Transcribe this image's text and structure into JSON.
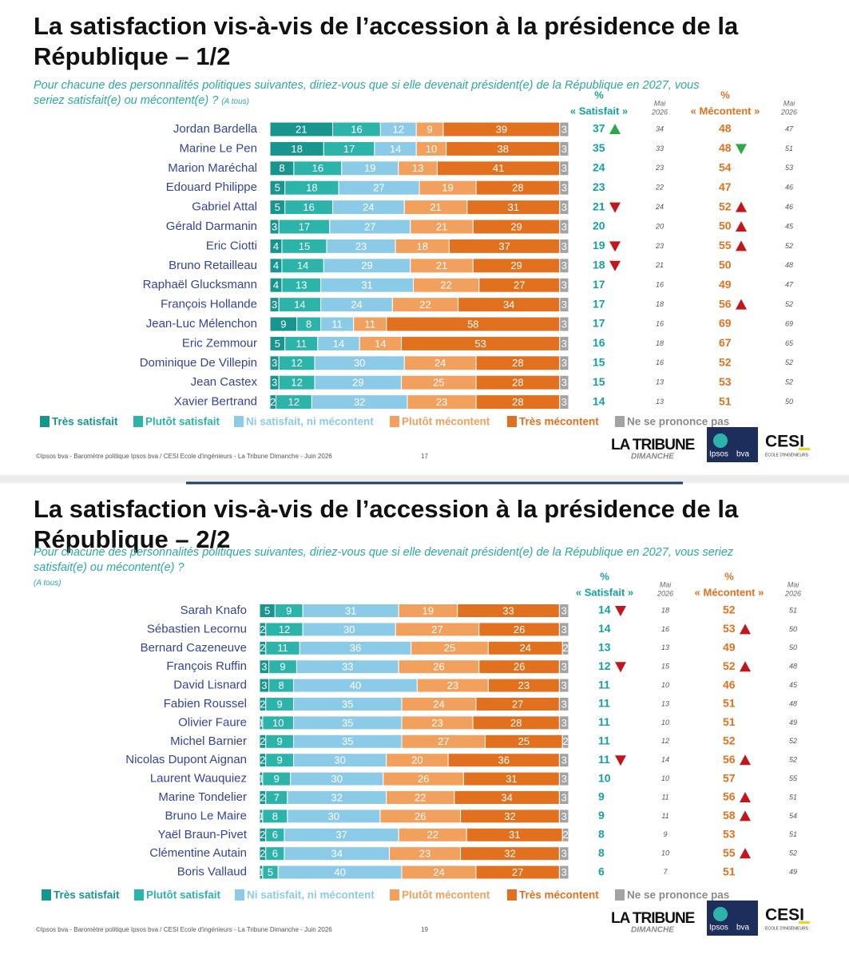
{
  "chart_data": [
    {
      "type": "stacked_bar_h",
      "title": "La satisfaction vis-à-vis de l’accession à la présidence de la République – 1/2",
      "subtitle": "Pour chacune des personnalités politiques suivantes, diriez-vous que si elle devenait président(e) de la République en 2027, vous seriez satisfait(e) ou mécontent(e) ?",
      "note": "(A tous)",
      "xlim": [
        0,
        100
      ],
      "categories": [
        "Jordan Bardella",
        "Marine Le Pen",
        "Marion Maréchal",
        "Edouard Philippe",
        "Gabriel Attal",
        "Gérald Darmanin",
        "Eric Ciotti",
        "Bruno Retailleau",
        "Raphaël Glucksmann",
        "François Hollande",
        "Jean-Luc Mélenchon",
        "Eric Zemmour",
        "Dominique De Villepin",
        "Jean Castex",
        "Xavier Bertrand"
      ],
      "series": [
        {
          "name": "Très satisfait",
          "color": "#17958e",
          "values": [
            21,
            18,
            8,
            5,
            5,
            3,
            4,
            4,
            4,
            3,
            9,
            5,
            3,
            3,
            2
          ]
        },
        {
          "name": "Plutôt satisfait",
          "color": "#2cb4ab",
          "values": [
            16,
            17,
            16,
            18,
            16,
            17,
            15,
            14,
            13,
            14,
            8,
            11,
            12,
            12,
            12
          ]
        },
        {
          "name": "Ni satisfait, ni mécontent",
          "color": "#8ccbe8",
          "values": [
            12,
            14,
            19,
            27,
            24,
            27,
            23,
            29,
            31,
            24,
            11,
            14,
            30,
            29,
            32
          ]
        },
        {
          "name": "Plutôt mécontent",
          "color": "#f2a05e",
          "values": [
            9,
            10,
            13,
            19,
            21,
            21,
            18,
            21,
            22,
            22,
            11,
            14,
            24,
            25,
            23
          ]
        },
        {
          "name": "Très mécontent",
          "color": "#e2711f",
          "values": [
            39,
            38,
            41,
            28,
            31,
            29,
            37,
            29,
            27,
            34,
            58,
            53,
            28,
            28,
            28
          ]
        },
        {
          "name": "Ne se prononce pas",
          "color": "#a3a3a3",
          "values": [
            3,
            3,
            3,
            3,
            3,
            3,
            3,
            3,
            3,
            3,
            3,
            3,
            3,
            3,
            3
          ]
        }
      ],
      "columns": [
        {
          "symbol": "%",
          "label": "« Satisfait »",
          "color": "#16a0a0",
          "up_color": "#2aa84a",
          "down_color": "#c0161c",
          "values": [
            37,
            35,
            24,
            23,
            21,
            20,
            19,
            18,
            17,
            17,
            17,
            16,
            15,
            15,
            14
          ],
          "trend": [
            "up",
            null,
            null,
            null,
            "down",
            null,
            "down",
            "down",
            null,
            null,
            null,
            null,
            null,
            null,
            null
          ]
        },
        {
          "label_lines": [
            "Mai",
            "2026"
          ],
          "values": [
            34,
            33,
            23,
            22,
            24,
            20,
            23,
            21,
            16,
            18,
            16,
            18,
            16,
            13,
            13
          ]
        },
        {
          "symbol": "%",
          "label": "« Mécontent »",
          "color": "#e2711f",
          "up_color": "#c0161c",
          "down_color": "#2aa84a",
          "values": [
            48,
            48,
            54,
            47,
            52,
            50,
            55,
            50,
            49,
            56,
            69,
            67,
            52,
            53,
            51
          ],
          "trend": [
            null,
            "down",
            null,
            null,
            "up",
            "up",
            "up",
            null,
            null,
            "up",
            null,
            null,
            null,
            null,
            null
          ]
        },
        {
          "label_lines": [
            "Mai",
            "2026"
          ],
          "values": [
            47,
            51,
            53,
            46,
            46,
            45,
            52,
            48,
            47,
            52,
            69,
            65,
            52,
            52,
            50
          ]
        }
      ],
      "source": "©Ipsos bva - Baromètre politique Ipsos bva / CESI Ecole d'ingénieurs - La Tribune Dimanche - Juin 2026",
      "page": "17",
      "logos": {
        "tribune": "LA TRIBUNE",
        "tribune_sub": "DIMANCHE",
        "ipsos": "Ipsos",
        "bva": "bva",
        "cesi": "CESI",
        "cesi_sub": "ÉCOLE D'INGÉNIEURS"
      }
    },
    {
      "type": "stacked_bar_h",
      "title": "La satisfaction vis-à-vis de l’accession à la présidence de la République – 2/2",
      "subtitle": "Pour chacune des personnalités politiques suivantes, diriez-vous que si elle devenait président(e) de la République en 2027, vous seriez satisfait(e) ou mécontent(e) ?",
      "note": "(A tous)",
      "xlim": [
        0,
        100
      ],
      "categories": [
        "Sarah Knafo",
        "Sébastien Lecornu",
        "Bernard Cazeneuve",
        "François Ruffin",
        "David Lisnard",
        "Fabien Roussel",
        "Olivier Faure",
        "Michel Barnier",
        "Nicolas Dupont Aignan",
        "Laurent Wauquiez",
        "Marine Tondelier",
        "Bruno Le Maire",
        "Yaël Braun-Pivet",
        "Clémentine Autain",
        "Boris Vallaud"
      ],
      "series": [
        {
          "name": "Très satisfait",
          "color": "#17958e",
          "values": [
            5,
            2,
            2,
            3,
            3,
            2,
            1,
            2,
            2,
            1,
            2,
            1,
            2,
            2,
            1
          ]
        },
        {
          "name": "Plutôt satisfait",
          "color": "#2cb4ab",
          "values": [
            9,
            12,
            11,
            9,
            8,
            9,
            10,
            9,
            9,
            9,
            7,
            8,
            6,
            6,
            5
          ]
        },
        {
          "name": "Ni satisfait, ni mécontent",
          "color": "#8ccbe8",
          "values": [
            31,
            30,
            36,
            33,
            40,
            35,
            35,
            35,
            30,
            30,
            32,
            30,
            37,
            34,
            40
          ]
        },
        {
          "name": "Plutôt mécontent",
          "color": "#f2a05e",
          "values": [
            19,
            27,
            25,
            26,
            23,
            24,
            23,
            27,
            20,
            26,
            22,
            26,
            22,
            23,
            24
          ]
        },
        {
          "name": "Très mécontent",
          "color": "#e2711f",
          "values": [
            33,
            26,
            24,
            26,
            23,
            27,
            28,
            25,
            36,
            31,
            34,
            32,
            31,
            32,
            27
          ]
        },
        {
          "name": "Ne se prononce pas",
          "color": "#a3a3a3",
          "values": [
            3,
            3,
            2,
            3,
            3,
            3,
            3,
            2,
            3,
            3,
            3,
            3,
            2,
            3,
            3
          ]
        }
      ],
      "columns": [
        {
          "symbol": "%",
          "label": "« Satisfait »",
          "color": "#16a0a0",
          "up_color": "#2aa84a",
          "down_color": "#c0161c",
          "values": [
            14,
            14,
            13,
            12,
            11,
            11,
            11,
            11,
            11,
            10,
            9,
            9,
            8,
            8,
            6
          ],
          "trend": [
            "down",
            null,
            null,
            "down",
            null,
            null,
            null,
            null,
            "down",
            null,
            null,
            null,
            null,
            null,
            null
          ]
        },
        {
          "label_lines": [
            "Mai",
            "2026"
          ],
          "values": [
            18,
            16,
            13,
            15,
            10,
            13,
            10,
            12,
            14,
            10,
            11,
            11,
            9,
            10,
            7
          ]
        },
        {
          "symbol": "%",
          "label": "« Mécontent »",
          "color": "#e2711f",
          "up_color": "#c0161c",
          "down_color": "#2aa84a",
          "values": [
            52,
            53,
            49,
            52,
            46,
            51,
            51,
            52,
            56,
            57,
            56,
            58,
            53,
            55,
            51
          ],
          "trend": [
            null,
            "up",
            null,
            "up",
            null,
            null,
            null,
            null,
            "up",
            null,
            "up",
            "up",
            null,
            "up",
            null
          ]
        },
        {
          "label_lines": [
            "Mai",
            "2026"
          ],
          "values": [
            51,
            50,
            50,
            48,
            45,
            48,
            49,
            52,
            52,
            55,
            51,
            54,
            51,
            52,
            49
          ]
        }
      ],
      "source": "©Ipsos bva - Baromètre politique Ipsos bva / CESI Ecole d'ingénieurs - La Tribune Dimanche - Juin 2026",
      "page": "19",
      "logos": {
        "tribune": "LA TRIBUNE",
        "tribune_sub": "DIMANCHE",
        "ipsos": "Ipsos",
        "bva": "bva",
        "cesi": "CESI",
        "cesi_sub": "ÉCOLE D'INGÉNIEURS"
      }
    }
  ]
}
